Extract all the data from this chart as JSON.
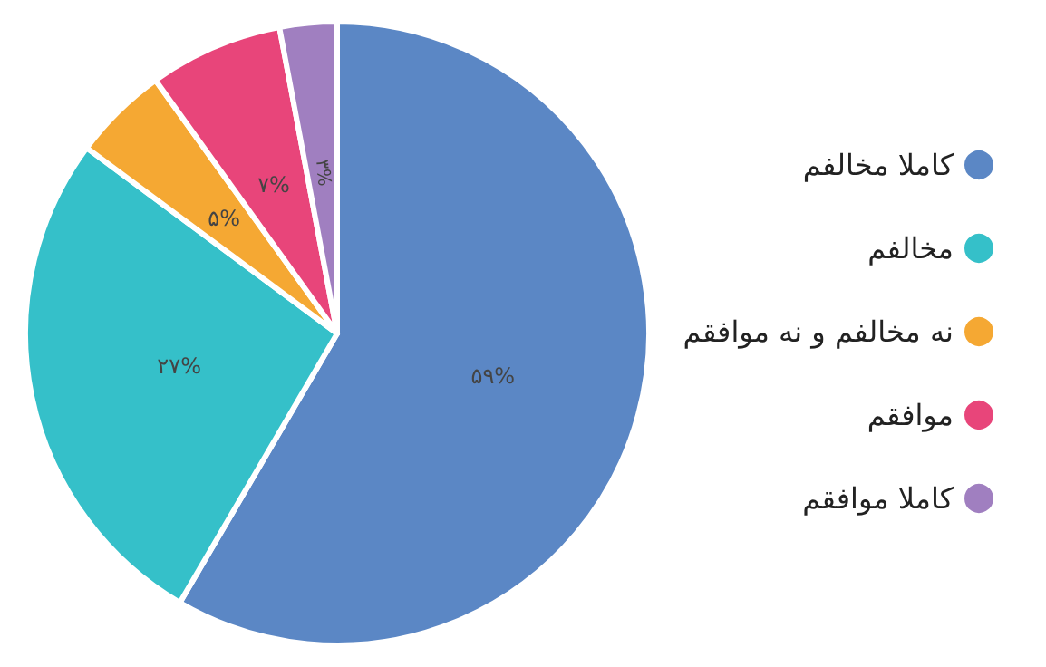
{
  "chart_data": {
    "type": "pie",
    "categories": [
      "کاملا مخالفم",
      "مخالفم",
      "نه مخالفم و نه موافقم",
      "موافقم",
      "کاملا موافقم"
    ],
    "values": [
      59,
      27,
      5,
      7,
      3
    ],
    "colors": [
      "#5b87c5",
      "#35c0c9",
      "#f5a833",
      "#e8457a",
      "#a07fc0"
    ],
    "value_labels": [
      "۵۹%",
      "۲۷%",
      "۵%",
      "۷%",
      "۳%"
    ],
    "legend": "right"
  }
}
